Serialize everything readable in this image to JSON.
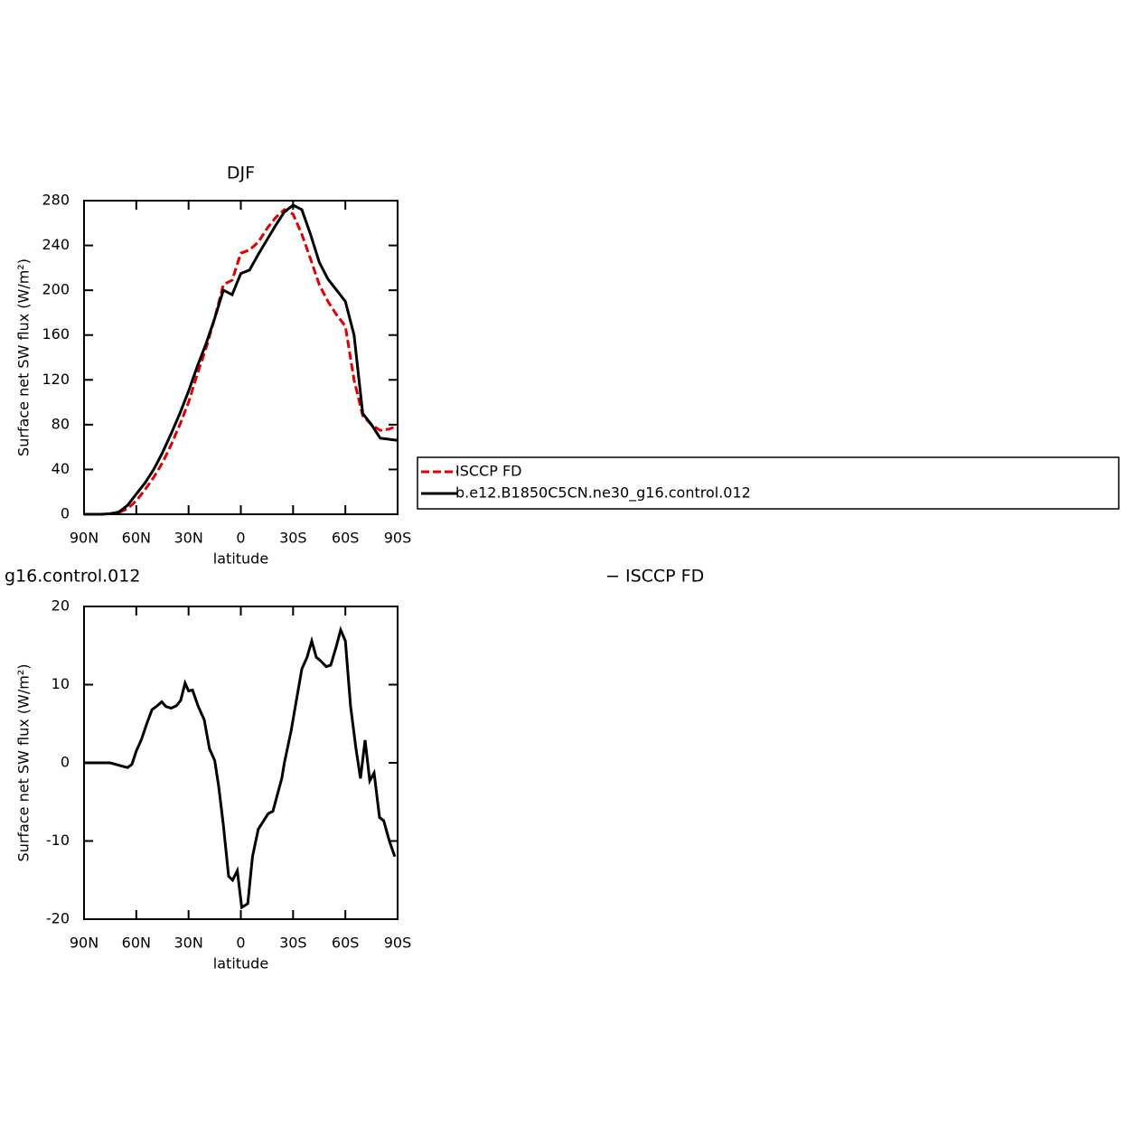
{
  "chart_data": [
    {
      "type": "line",
      "title": "DJF",
      "xlabel": "latitude",
      "ylabel": "Surface net SW flux (W/m²)",
      "x": [
        90,
        85,
        80,
        75,
        70,
        65,
        60,
        55,
        50,
        45,
        40,
        35,
        30,
        25,
        20,
        15,
        10,
        5,
        0,
        -5,
        -10,
        -15,
        -20,
        -25,
        -30,
        -35,
        -40,
        -45,
        -50,
        -55,
        -60,
        -65,
        -70,
        -75,
        -80,
        -85,
        -90
      ],
      "series": [
        {
          "name": "ISCCP FD",
          "color": "#e00000",
          "line_style": "dashed",
          "values": [
            0,
            0,
            0,
            0.5,
            1.5,
            5,
            12,
            22,
            33,
            46,
            62,
            80,
            100,
            125,
            148,
            175,
            205,
            209,
            233,
            236,
            243,
            255,
            265,
            272,
            268,
            250,
            228,
            205,
            190,
            178,
            168,
            120,
            88,
            80,
            75,
            76,
            79
          ]
        },
        {
          "name": "b.e12.B1850C5CN.ne30_g16.control.012",
          "color": "#000000",
          "line_style": "solid",
          "values": [
            0,
            0,
            0,
            0.5,
            2,
            8,
            18,
            28,
            40,
            55,
            72,
            90,
            110,
            132,
            152,
            175,
            200,
            196,
            215,
            218,
            232,
            245,
            258,
            270,
            276,
            272,
            250,
            225,
            210,
            200,
            190,
            160,
            90,
            80,
            68,
            67,
            66
          ]
        }
      ],
      "xlim": [
        90,
        -90
      ],
      "xticks": [
        {
          "value": 90,
          "label": "90N"
        },
        {
          "value": 60,
          "label": "60N"
        },
        {
          "value": 30,
          "label": "30N"
        },
        0,
        {
          "value": -30,
          "label": "30S"
        },
        {
          "value": -60,
          "label": "60S"
        },
        {
          "value": -90,
          "label": "90S"
        }
      ],
      "ylim": [
        0,
        280
      ],
      "yticks": [
        0,
        40,
        80,
        120,
        160,
        200,
        240,
        280
      ],
      "legend": "right"
    },
    {
      "type": "line",
      "title_fragments": [
        "g16.control.012",
        "− ISCCP FD"
      ],
      "xlabel": "latitude",
      "ylabel": "Surface net SW flux (W/m²)",
      "x": [
        90,
        85,
        80,
        75,
        67,
        65,
        62.5,
        60,
        57,
        54,
        51,
        48.5,
        45.4,
        43,
        40,
        37,
        34.5,
        32,
        30,
        27.7,
        24.6,
        21,
        18,
        15,
        12.7,
        10,
        7,
        4.7,
        2,
        -0.5,
        -4,
        -6.7,
        -10,
        -15.7,
        -18.4,
        -23.5,
        -25,
        -28.8,
        -35,
        -38,
        -40.7,
        -43.3,
        -46,
        -49,
        -51.6,
        -54.7,
        -57.3,
        -60,
        -63,
        -66,
        -68.7,
        -71.3,
        -74,
        -76.5,
        -79.6,
        -82,
        -85.3,
        -88.4
      ],
      "series": [
        {
          "name": null,
          "color": "#000000",
          "line_style": "solid",
          "values": [
            0,
            0,
            0,
            0,
            -0.5,
            -0.6,
            -0.2,
            1.5,
            3,
            5,
            6.8,
            7.2,
            7.8,
            7.2,
            7,
            7.3,
            8,
            10.2,
            9.2,
            9.3,
            7.3,
            5.5,
            1.8,
            0.3,
            -3,
            -8,
            -14.5,
            -15,
            -13.8,
            -18.5,
            -18,
            -12,
            -8.5,
            -6.5,
            -6.2,
            -2,
            0,
            4,
            12,
            13.5,
            15.6,
            13.5,
            13,
            12.3,
            12.5,
            14.8,
            17,
            15.6,
            7.3,
            2,
            -2,
            2.9,
            -2.3,
            -1.3,
            -7,
            -7.4,
            -10,
            -12
          ]
        }
      ],
      "xlim": [
        90,
        -90
      ],
      "xticks": [
        {
          "value": 90,
          "label": "90N"
        },
        {
          "value": 60,
          "label": "60N"
        },
        {
          "value": 30,
          "label": "30N"
        },
        0,
        {
          "value": -30,
          "label": "30S"
        },
        {
          "value": -60,
          "label": "60S"
        },
        {
          "value": -90,
          "label": "90S"
        }
      ],
      "ylim": [
        -20,
        20
      ],
      "yticks": [
        -20,
        -10,
        0,
        10,
        20
      ]
    }
  ]
}
